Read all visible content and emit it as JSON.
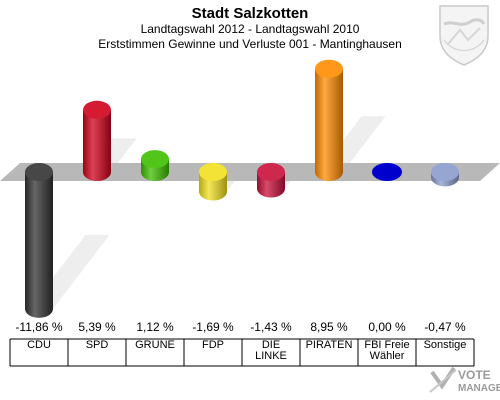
{
  "header": {
    "title": "Stadt Salzkotten",
    "subtitle1": "Landtagswahl 2012 - Landtagswahl 2010",
    "subtitle2": "Erststimmen Gewinne und Verluste 001 - Mantinghausen"
  },
  "branding": {
    "watermark_line1": "VOTE",
    "watermark_line2": "MANAGER"
  },
  "chart_data": {
    "type": "bar",
    "title": "Stadt Salzkotten",
    "categories": [
      "CDU",
      "SPD",
      "GRÜNE",
      "FDP",
      "DIE LINKE",
      "PIRATEN",
      "FBI Freie Wähler",
      "Sonstige"
    ],
    "category_lines": [
      [
        "CDU"
      ],
      [
        "SPD"
      ],
      [
        "GRÜNE"
      ],
      [
        "FDP"
      ],
      [
        "DIE",
        "LINKE"
      ],
      [
        "PIRATEN"
      ],
      [
        "FBI Freie",
        "Wähler"
      ],
      [
        "Sonstige"
      ]
    ],
    "values": [
      -11.86,
      5.39,
      1.12,
      -1.69,
      -1.43,
      8.95,
      0.0,
      -0.47
    ],
    "value_labels": [
      "-11,86 %",
      "5,39 %",
      "1,12 %",
      "-1,69 %",
      "-1,43 %",
      "8,95 %",
      "0,00 %",
      "-0,47 %"
    ],
    "colors": [
      "#333333",
      "#d0021b",
      "#3fbf00",
      "#f0e020",
      "#c8103a",
      "#ff8c00",
      "#0000cc",
      "#8a9ccc"
    ],
    "legend": "none",
    "grid": false
  }
}
